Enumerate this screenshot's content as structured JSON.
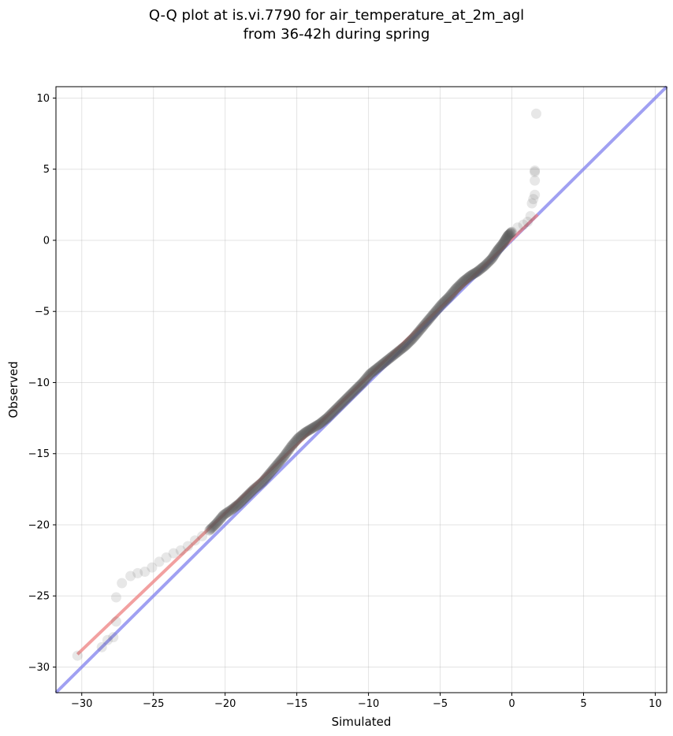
{
  "chart_data": {
    "type": "scatter",
    "title_line1": "Q-Q plot at is.vi.7790 for air_temperature_at_2m_agl",
    "title_line2": "from 36-42h during spring",
    "xlabel": "Simulated",
    "ylabel": "Observed",
    "xlim": [
      -31.8,
      10.8
    ],
    "ylim": [
      -31.8,
      10.8
    ],
    "xticks": [
      -30,
      -25,
      -20,
      -15,
      -10,
      -5,
      0,
      5,
      10
    ],
    "yticks": [
      -30,
      -25,
      -20,
      -15,
      -10,
      -5,
      0,
      5,
      10
    ],
    "tick_labels_x": [
      "−30",
      "−25",
      "−20",
      "−15",
      "−10",
      "−5",
      "0",
      "5",
      "10"
    ],
    "tick_labels_y": [
      "−30",
      "−25",
      "−20",
      "−15",
      "−10",
      "−5",
      "0",
      "5",
      "10"
    ],
    "grid": true,
    "identity_line": {
      "color": "#8080ee",
      "from": [
        -31.8,
        -31.8
      ],
      "to": [
        10.8,
        10.8
      ]
    },
    "fit_line": {
      "color": "#ee8080",
      "from": [
        -30.3,
        -29.1
      ],
      "to": [
        1.8,
        1.8
      ]
    },
    "quantiles": [
      [
        -30.3,
        -29.2
      ],
      [
        -28.6,
        -28.6
      ],
      [
        -28.2,
        -28.1
      ],
      [
        -27.8,
        -27.9
      ],
      [
        -27.6,
        -26.8
      ],
      [
        -27.6,
        -25.1
      ],
      [
        -27.2,
        -24.1
      ],
      [
        -26.6,
        -23.6
      ],
      [
        -26.1,
        -23.4
      ],
      [
        -25.6,
        -23.3
      ],
      [
        -25.1,
        -23.0
      ],
      [
        -24.6,
        -22.6
      ],
      [
        -24.1,
        -22.3
      ],
      [
        -23.6,
        -22.0
      ],
      [
        -23.1,
        -21.8
      ],
      [
        -22.6,
        -21.5
      ],
      [
        -22.1,
        -21.1
      ],
      [
        -21.6,
        -20.8
      ],
      [
        -21.1,
        -20.4
      ],
      [
        -20.6,
        -19.9
      ],
      [
        -20.1,
        -19.3
      ],
      [
        -19.5,
        -18.9
      ],
      [
        -19.0,
        -18.5
      ],
      [
        -18.5,
        -18.0
      ],
      [
        -18.0,
        -17.5
      ],
      [
        -17.4,
        -17.0
      ],
      [
        -16.9,
        -16.4
      ],
      [
        -16.4,
        -15.8
      ],
      [
        -15.9,
        -15.2
      ],
      [
        -15.4,
        -14.5
      ],
      [
        -14.9,
        -13.9
      ],
      [
        -14.4,
        -13.5
      ],
      [
        -13.9,
        -13.2
      ],
      [
        -13.4,
        -12.9
      ],
      [
        -12.9,
        -12.5
      ],
      [
        -12.4,
        -12.0
      ],
      [
        -11.9,
        -11.5
      ],
      [
        -11.4,
        -11.0
      ],
      [
        -10.9,
        -10.5
      ],
      [
        -10.4,
        -10.0
      ],
      [
        -9.9,
        -9.4
      ],
      [
        -9.4,
        -9.0
      ],
      [
        -8.9,
        -8.6
      ],
      [
        -8.4,
        -8.2
      ],
      [
        -7.9,
        -7.8
      ],
      [
        -7.4,
        -7.4
      ],
      [
        -6.9,
        -6.9
      ],
      [
        -6.4,
        -6.3
      ],
      [
        -5.9,
        -5.7
      ],
      [
        -5.4,
        -5.1
      ],
      [
        -4.9,
        -4.5
      ],
      [
        -4.4,
        -4.0
      ],
      [
        -3.9,
        -3.4
      ],
      [
        -3.4,
        -2.9
      ],
      [
        -2.9,
        -2.5
      ],
      [
        -2.4,
        -2.2
      ],
      [
        -1.9,
        -1.8
      ],
      [
        -1.4,
        -1.3
      ],
      [
        -1.0,
        -0.7
      ],
      [
        -0.6,
        -0.2
      ],
      [
        -0.3,
        0.3
      ],
      [
        0.0,
        0.6
      ],
      [
        0.4,
        0.9
      ],
      [
        0.8,
        1.1
      ],
      [
        1.1,
        1.3
      ],
      [
        1.3,
        1.7
      ],
      [
        1.4,
        2.6
      ],
      [
        1.5,
        2.9
      ],
      [
        1.6,
        3.2
      ],
      [
        1.6,
        4.2
      ],
      [
        1.6,
        4.8
      ],
      [
        1.6,
        4.9
      ],
      [
        1.7,
        8.9
      ]
    ]
  }
}
